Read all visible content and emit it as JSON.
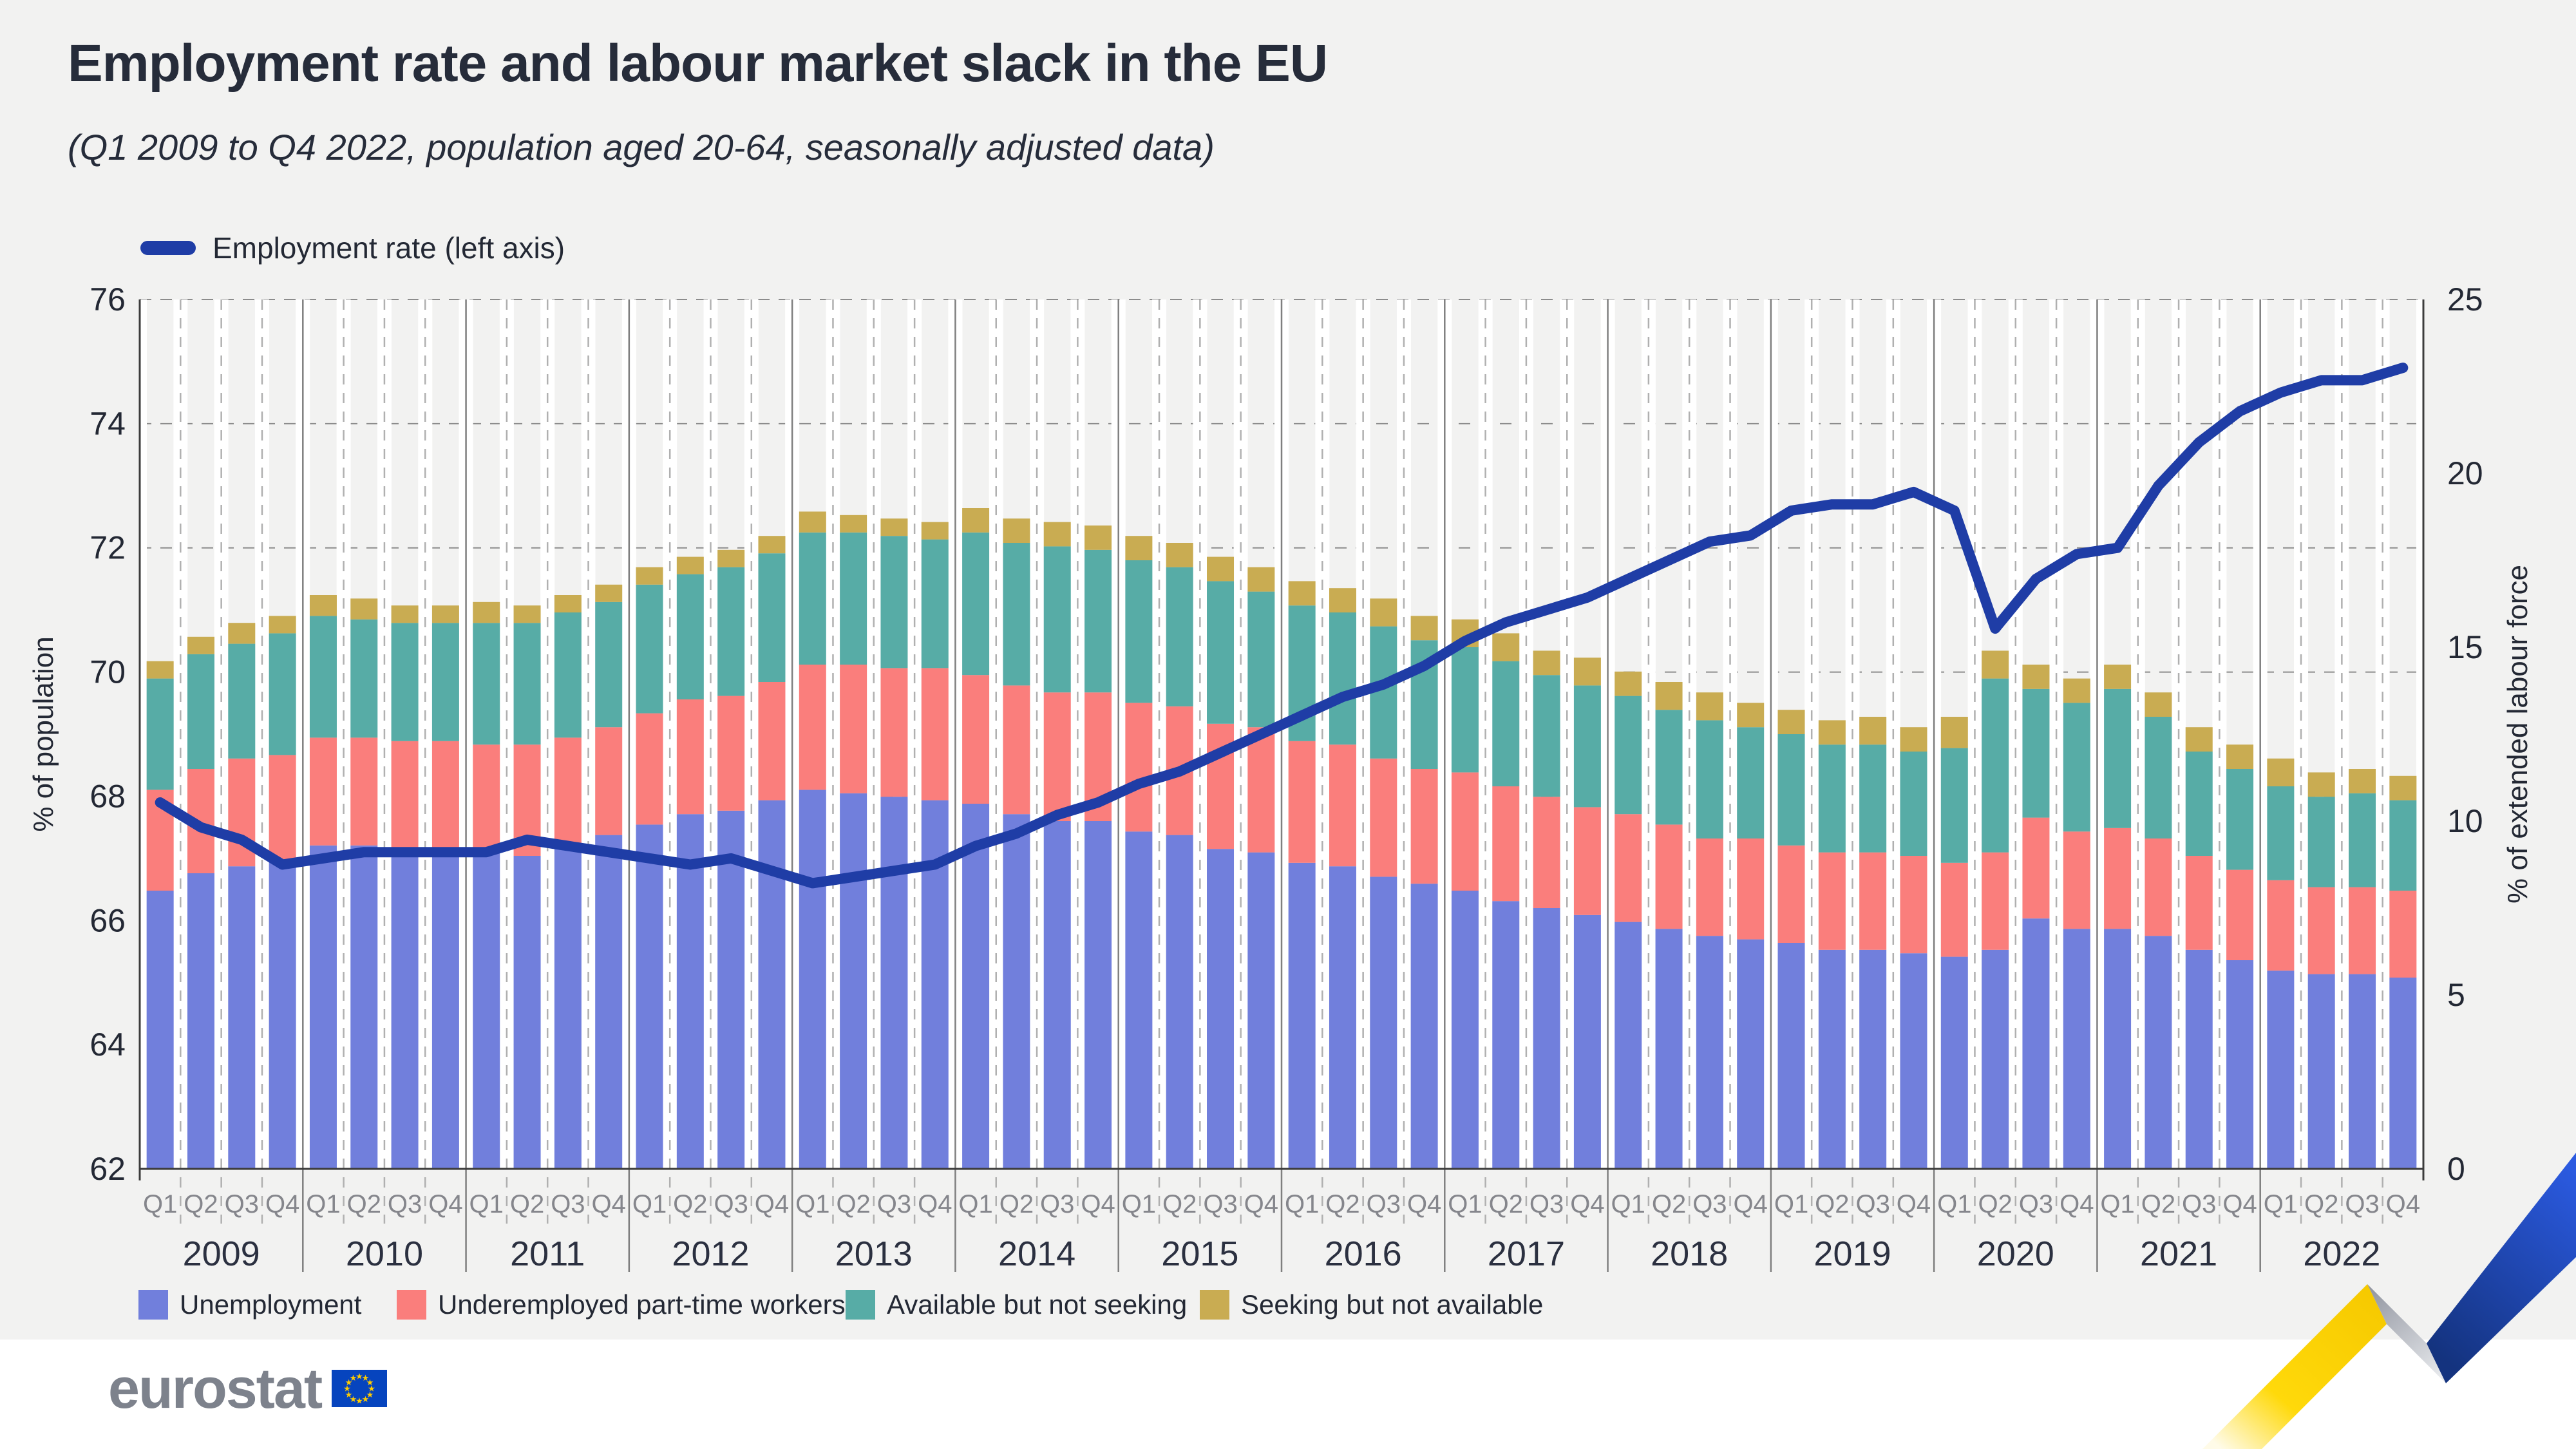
{
  "header": {
    "title": "Employment rate and labour market slack in the EU",
    "subtitle": "(Q1 2009 to Q4 2022, population aged 20-64, seasonally adjusted data)"
  },
  "top_legend": {
    "label": "Employment rate (left axis)",
    "color": "#1f3da6"
  },
  "legend": {
    "items": [
      {
        "label": "Unemployment",
        "color": "#717fdc"
      },
      {
        "label": "Underemployed part-time workers",
        "color": "#fa7e7c"
      },
      {
        "label": "Available but not seeking",
        "color": "#57aca6"
      },
      {
        "label": "Seeking but not available",
        "color": "#c9ac52"
      }
    ]
  },
  "footer": {
    "logo_text": "eurostat"
  },
  "chart_data": {
    "type": "combo (stacked bar + line)",
    "x": {
      "years": [
        "2009",
        "2010",
        "2011",
        "2012",
        "2013",
        "2014",
        "2015",
        "2016",
        "2017",
        "2018",
        "2019",
        "2020",
        "2021",
        "2022"
      ],
      "quarters": [
        "Q1",
        "Q2",
        "Q3",
        "Q4"
      ]
    },
    "left_axis": {
      "label": "% of population",
      "min": 62,
      "max": 76,
      "step": 2,
      "ticks": [
        62,
        64,
        66,
        68,
        70,
        72,
        74,
        76
      ]
    },
    "right_axis": {
      "label": "% of extended labour force",
      "min": 0,
      "max": 25,
      "step": 5,
      "ticks": [
        0,
        5,
        10,
        15,
        20,
        25
      ]
    },
    "grid": {
      "horizontal": "dashed at left-axis ticks",
      "vertical": "dashed per quarter, solid per year",
      "legend_position": "below chart"
    },
    "bar_series": [
      {
        "name": "Unemployment",
        "axis": "right",
        "color": "#717fdc",
        "values": [
          8.0,
          8.5,
          8.7,
          8.9,
          9.3,
          9.3,
          9.2,
          9.2,
          9.1,
          9.0,
          9.3,
          9.6,
          9.9,
          10.2,
          10.3,
          10.6,
          10.9,
          10.8,
          10.7,
          10.6,
          10.5,
          10.2,
          10.0,
          10.0,
          9.7,
          9.6,
          9.2,
          9.1,
          8.8,
          8.7,
          8.4,
          8.2,
          8.0,
          7.7,
          7.5,
          7.3,
          7.1,
          6.9,
          6.7,
          6.6,
          6.5,
          6.3,
          6.3,
          6.2,
          6.1,
          6.3,
          7.2,
          6.9,
          6.9,
          6.7,
          6.3,
          6.0,
          5.7,
          5.6,
          5.6,
          5.5
        ]
      },
      {
        "name": "Underemployed part-time workers",
        "axis": "right",
        "color": "#fa7e7c",
        "values": [
          2.9,
          3.0,
          3.1,
          3.0,
          3.1,
          3.1,
          3.1,
          3.1,
          3.1,
          3.2,
          3.1,
          3.1,
          3.2,
          3.3,
          3.3,
          3.4,
          3.6,
          3.7,
          3.7,
          3.8,
          3.7,
          3.7,
          3.7,
          3.7,
          3.7,
          3.7,
          3.6,
          3.6,
          3.5,
          3.5,
          3.4,
          3.3,
          3.4,
          3.3,
          3.2,
          3.1,
          3.1,
          3.0,
          2.8,
          2.9,
          2.8,
          2.8,
          2.8,
          2.8,
          2.7,
          2.8,
          2.9,
          2.8,
          2.9,
          2.8,
          2.7,
          2.6,
          2.6,
          2.5,
          2.5,
          2.5
        ]
      },
      {
        "name": "Available but not seeking",
        "axis": "right",
        "color": "#57aca6",
        "values": [
          3.2,
          3.3,
          3.3,
          3.5,
          3.5,
          3.4,
          3.4,
          3.4,
          3.5,
          3.5,
          3.6,
          3.6,
          3.7,
          3.6,
          3.7,
          3.7,
          3.8,
          3.8,
          3.8,
          3.7,
          4.1,
          4.1,
          4.2,
          4.1,
          4.1,
          4.0,
          4.1,
          3.9,
          3.9,
          3.8,
          3.8,
          3.7,
          3.6,
          3.6,
          3.5,
          3.5,
          3.4,
          3.3,
          3.4,
          3.2,
          3.2,
          3.1,
          3.1,
          3.0,
          3.3,
          5.0,
          3.7,
          3.7,
          4.0,
          3.5,
          3.0,
          2.9,
          2.7,
          2.6,
          2.7,
          2.6
        ]
      },
      {
        "name": "Seeking but not available",
        "axis": "right",
        "color": "#c9ac52",
        "values": [
          0.5,
          0.5,
          0.6,
          0.5,
          0.6,
          0.6,
          0.5,
          0.5,
          0.6,
          0.5,
          0.5,
          0.5,
          0.5,
          0.5,
          0.5,
          0.5,
          0.6,
          0.5,
          0.5,
          0.5,
          0.7,
          0.7,
          0.7,
          0.7,
          0.7,
          0.7,
          0.7,
          0.7,
          0.7,
          0.7,
          0.8,
          0.7,
          0.8,
          0.8,
          0.7,
          0.8,
          0.7,
          0.8,
          0.8,
          0.7,
          0.7,
          0.7,
          0.8,
          0.7,
          0.9,
          0.8,
          0.7,
          0.7,
          0.7,
          0.7,
          0.7,
          0.7,
          0.8,
          0.7,
          0.7,
          0.7
        ]
      }
    ],
    "line_series": {
      "name": "Employment rate (left axis)",
      "axis": "left",
      "color": "#1f3da6",
      "values": [
        67.9,
        67.5,
        67.3,
        66.9,
        67.0,
        67.1,
        67.1,
        67.1,
        67.1,
        67.3,
        67.2,
        67.1,
        67.0,
        66.9,
        67.0,
        66.8,
        66.6,
        66.7,
        66.8,
        66.9,
        67.2,
        67.4,
        67.7,
        67.9,
        68.2,
        68.4,
        68.7,
        69.0,
        69.3,
        69.6,
        69.8,
        70.1,
        70.5,
        70.8,
        71.0,
        71.2,
        71.5,
        71.8,
        72.1,
        72.2,
        72.6,
        72.7,
        72.7,
        72.9,
        72.6,
        70.7,
        71.5,
        71.9,
        72.0,
        73.0,
        73.7,
        74.2,
        74.5,
        74.7,
        74.7,
        74.9
      ]
    }
  }
}
